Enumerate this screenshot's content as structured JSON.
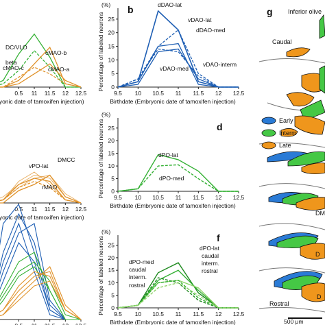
{
  "figure": {
    "colors": {
      "dao": "#1f5fb4",
      "po": "#35b135",
      "mao": "#e0922a",
      "green_light": "#8fd36a",
      "green_dark": "#1f8a1f",
      "axis": "#222222"
    },
    "common": {
      "ylabel": "Percentage of labeled neurons",
      "yunit": "(%)",
      "xlabel": "Birthdate (Embryonic date of tamoxifen injection)",
      "xlabel_cut": "ryonic date of tamoxifen injection)"
    },
    "panels": {
      "b": "b",
      "d": "d",
      "f": "f",
      "g": "g"
    },
    "diagram": {
      "title": "Inferior olive",
      "caudal": "Caudal",
      "rostral": "Rostral",
      "scalebar": "500 μm",
      "legend": [
        {
          "label": "Early",
          "color": "#2a7bd6"
        },
        {
          "label": "Interm",
          "color": "#45c845"
        },
        {
          "label": "Late",
          "color": "#ef961c"
        }
      ],
      "cut_labels": [
        "DM",
        "D",
        "D"
      ]
    }
  },
  "chart_data": [
    {
      "panel": "a",
      "type": "line",
      "x": [
        9.5,
        10,
        10.5,
        11,
        11.5,
        12,
        12.5
      ],
      "visible_ticks": [
        "0.5",
        "11",
        "11.5",
        "12",
        "12.5"
      ],
      "labels": [
        "DC/VLO",
        "beta",
        "cMAO-b",
        "cMAO-c",
        "cMAO-a"
      ],
      "series": [
        {
          "name": "DC/VLO",
          "values": [
            0,
            2,
            10,
            16,
            9,
            0,
            0
          ],
          "color": "green"
        },
        {
          "name": "beta",
          "values": [
            0,
            1,
            5,
            11,
            6,
            0,
            0
          ],
          "color": "green",
          "dash": true
        },
        {
          "name": "cMAO-b",
          "values": [
            0,
            0,
            2,
            7,
            12,
            1,
            0
          ],
          "color": "orange"
        },
        {
          "name": "cMAO-c",
          "values": [
            0,
            0,
            3,
            6,
            4,
            1,
            0
          ],
          "color": "orange",
          "dash": true
        },
        {
          "name": "cMAO-a",
          "values": [
            0,
            0,
            1,
            4,
            7,
            2,
            0
          ],
          "color": "orange"
        }
      ]
    },
    {
      "panel": "b",
      "type": "line",
      "x": [
        9.5,
        10,
        10.5,
        11,
        11.5,
        12,
        12.5
      ],
      "xticks": [
        "9.5",
        "10",
        "10.5",
        "11",
        "11.5",
        "12",
        "12.5"
      ],
      "yticks": [
        "0",
        "5",
        "10",
        "15",
        "20",
        "25"
      ],
      "ylim": [
        0,
        29
      ],
      "labels": [
        "dDAO-lat",
        "vDAO-lat",
        "dDAO-med",
        "vDAO-med",
        "vDAO-interm"
      ],
      "series": [
        {
          "name": "dDAO-lat",
          "values": [
            0,
            2,
            28,
            21,
            2,
            0,
            0
          ],
          "dash": false
        },
        {
          "name": "vDAO-lat",
          "values": [
            0,
            3,
            15,
            21,
            5,
            0,
            0
          ],
          "dash": true
        },
        {
          "name": "dDAO-med",
          "values": [
            0,
            2,
            15,
            16,
            1,
            0,
            0
          ],
          "dash": false
        },
        {
          "name": "vDAO-med",
          "values": [
            0,
            3,
            14,
            13,
            4,
            0,
            0
          ],
          "dash": true
        },
        {
          "name": "vDAO-interm",
          "values": [
            0,
            1,
            13,
            14,
            3,
            0,
            0
          ],
          "dash": false
        }
      ]
    },
    {
      "panel": "c",
      "type": "line",
      "x": [
        9.5,
        10,
        10.5,
        11,
        11.5,
        12,
        12.5
      ],
      "visible_ticks": [
        "0.5",
        "11",
        "11.5",
        "12",
        "12.5"
      ],
      "labels": [
        "vPO-lat",
        "DMCC",
        "rMAO"
      ],
      "series": [
        {
          "name": "vPO-lat",
          "values": [
            0,
            1,
            6,
            8,
            7,
            1,
            0
          ],
          "color": "orange"
        },
        {
          "name": "DMCC",
          "values": [
            0,
            0,
            4,
            6,
            9,
            2,
            0
          ],
          "color": "orange"
        },
        {
          "name": "rMAO",
          "values": [
            0,
            1,
            5,
            7,
            5,
            1,
            0
          ],
          "color": "orange",
          "dash": true
        }
      ]
    },
    {
      "panel": "d",
      "type": "line",
      "x": [
        9.5,
        10,
        10.5,
        11,
        11.5,
        12,
        12.5
      ],
      "xticks": [
        "9.5",
        "10",
        "10.5",
        "11",
        "11.5",
        "12",
        "12.5"
      ],
      "yticks": [
        "0",
        "5",
        "10",
        "15",
        "20",
        "25"
      ],
      "ylim": [
        0,
        29
      ],
      "labels": [
        "dPO-lat",
        "dPO-med"
      ],
      "series": [
        {
          "name": "dPO-lat",
          "values": [
            0,
            1,
            14.5,
            12.5,
            8,
            0,
            0
          ],
          "dash": false
        },
        {
          "name": "dPO-med",
          "values": [
            0,
            1,
            10,
            10.5,
            5,
            0,
            0
          ],
          "dash": true
        }
      ]
    },
    {
      "panel": "e",
      "type": "line",
      "x": [
        9.5,
        10,
        10.5,
        11,
        11.5,
        12,
        12.5
      ],
      "visible_ticks": [
        "0.5",
        "11",
        "11.5",
        "12",
        "12.5"
      ],
      "series": []
    },
    {
      "panel": "f",
      "type": "line",
      "x": [
        9.5,
        10,
        10.5,
        11,
        11.5,
        12,
        12.5
      ],
      "xticks": [
        "9.5",
        "10",
        "10.5",
        "11",
        "11.5",
        "12",
        "12.5"
      ],
      "yticks": [
        "0",
        "5",
        "10",
        "15",
        "20",
        "25"
      ],
      "ylim": [
        0,
        29
      ],
      "labels": [
        "dPO-lat",
        "caudal",
        "interm.",
        "rostral",
        "dPO-med",
        "caudal",
        "interm.",
        "rostral"
      ],
      "series": [
        {
          "name": "dPO-lat caudal",
          "values": [
            0,
            1,
            14,
            18,
            6,
            0,
            0
          ],
          "dash": false,
          "shade": "dark"
        },
        {
          "name": "dPO-lat interm.",
          "values": [
            0,
            1,
            11,
            15,
            7,
            0,
            0
          ],
          "dash": false,
          "shade": "mid"
        },
        {
          "name": "dPO-lat rostral",
          "values": [
            0,
            1,
            10,
            11,
            8,
            0,
            0
          ],
          "dash": false,
          "shade": "light"
        },
        {
          "name": "dPO-med caudal",
          "values": [
            0,
            1,
            12,
            10,
            3,
            0,
            0
          ],
          "dash": true,
          "shade": "dark"
        },
        {
          "name": "dPO-med interm.",
          "values": [
            0,
            1,
            10,
            11,
            4,
            0,
            0
          ],
          "dash": true,
          "shade": "mid"
        },
        {
          "name": "dPO-med rostral",
          "values": [
            0,
            1,
            8,
            10,
            5,
            0,
            0
          ],
          "dash": true,
          "shade": "light"
        }
      ]
    }
  ]
}
